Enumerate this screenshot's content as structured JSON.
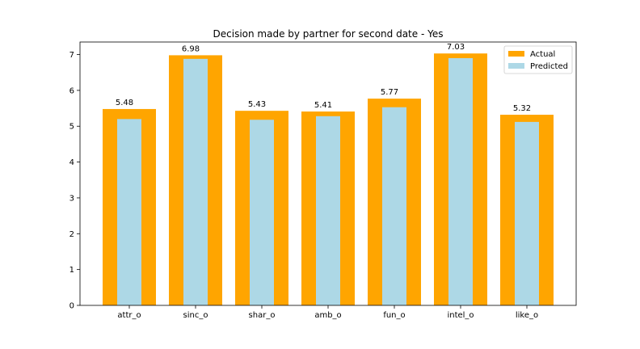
{
  "chart_data": {
    "type": "bar",
    "title": "Decision made by partner for second date - Yes",
    "xlabel": "",
    "ylabel": "",
    "categories": [
      "attr_o",
      "sinc_o",
      "shar_o",
      "amb_o",
      "fun_o",
      "intel_o",
      "like_o"
    ],
    "series": [
      {
        "name": "Actual",
        "color": "#ffa500",
        "values": [
          5.48,
          6.98,
          5.43,
          5.41,
          5.77,
          7.03,
          5.32
        ]
      },
      {
        "name": "Predicted",
        "color": "#add8e6",
        "values": [
          5.2,
          6.88,
          5.18,
          5.28,
          5.53,
          6.9,
          5.12
        ]
      }
    ],
    "data_labels": [
      "5.48",
      "6.98",
      "5.43",
      "5.41",
      "5.77",
      "7.03",
      "5.32"
    ],
    "ylim": [
      0,
      7.35
    ],
    "yticks": [
      0,
      1,
      2,
      3,
      4,
      5,
      6,
      7
    ],
    "grid": false,
    "legend_position": "top-right"
  }
}
